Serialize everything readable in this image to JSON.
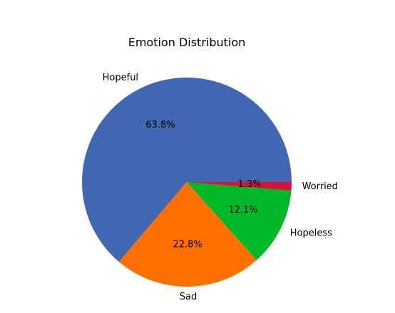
{
  "chart_data": {
    "type": "pie",
    "title": "Emotion Distribution",
    "slices": [
      {
        "label": "Hopeful",
        "value": 63.8,
        "pct_label": "63.8%",
        "color": "#4267b2"
      },
      {
        "label": "Sad",
        "value": 22.8,
        "pct_label": "22.8%",
        "color": "#ff7000"
      },
      {
        "label": "Hopeless",
        "value": 12.1,
        "pct_label": "12.1%",
        "color": "#00b828"
      },
      {
        "label": "Worried",
        "value": 1.3,
        "pct_label": "1.3%",
        "color": "#d21538"
      }
    ],
    "start_angle_deg": 0,
    "direction": "counterclockwise"
  }
}
